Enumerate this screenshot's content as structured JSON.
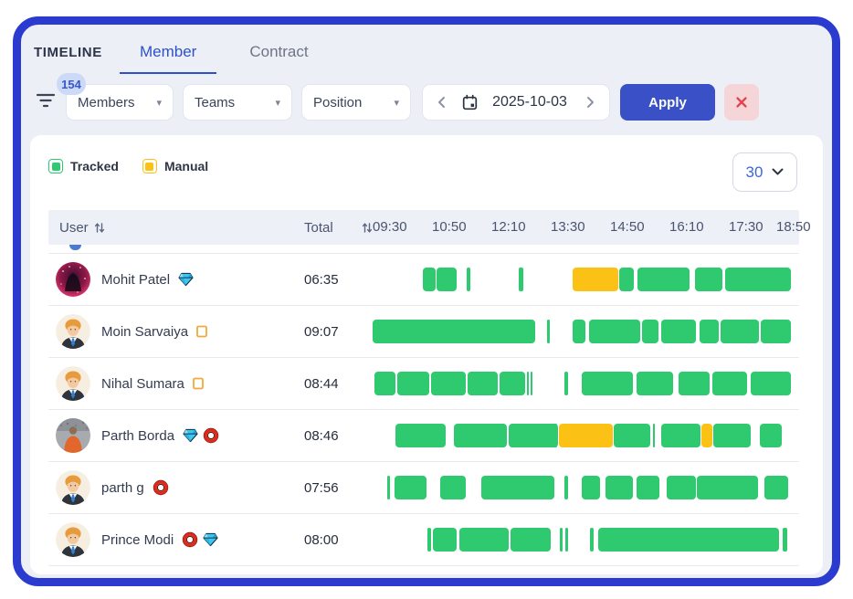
{
  "header": {
    "title": "TIMELINE",
    "tabs": [
      {
        "label": "Member",
        "active": true
      },
      {
        "label": "Contract",
        "active": false
      }
    ]
  },
  "filters": {
    "badge": "154",
    "dropdowns": [
      {
        "label": "Members"
      },
      {
        "label": "Teams"
      },
      {
        "label": "Position"
      }
    ],
    "date": {
      "value": "2025-10-03"
    },
    "apply_label": "Apply"
  },
  "legend": [
    {
      "label": "Tracked",
      "color": "#2fc96f"
    },
    {
      "label": "Manual",
      "color": "#fcc115"
    }
  ],
  "page_size": "30",
  "colors": {
    "green": "#2fc96f",
    "yellow": "#fcc115",
    "accent": "#2d4fc8",
    "frame_border": "#2b3bd0",
    "danger": "#e2444e"
  },
  "table": {
    "columns": {
      "user": "User",
      "total": "Total"
    },
    "times": [
      "09:30",
      "10:50",
      "12:10",
      "13:30",
      "14:50",
      "16:10",
      "17:30",
      "18:50"
    ],
    "rows": [
      {
        "name": "Mohit Patel",
        "badges": [
          "gem-icon"
        ],
        "avatar": "hooded",
        "total": "06:35",
        "segments": [
          [
            55,
            14
          ],
          [
            70,
            22
          ],
          [
            103,
            4
          ],
          [
            160,
            5
          ],
          [
            219,
            50,
            "y"
          ],
          [
            270,
            16
          ],
          [
            290,
            57
          ],
          [
            353,
            30
          ],
          [
            386,
            72
          ]
        ]
      },
      {
        "name": "Moin Sarvaiya",
        "badges": [
          "tofu-icon"
        ],
        "avatar": "suit",
        "total": "09:07",
        "segments": [
          [
            0,
            178
          ],
          [
            191,
            3
          ],
          [
            219,
            14
          ],
          [
            237,
            56
          ],
          [
            295,
            18
          ],
          [
            316,
            38
          ],
          [
            358,
            21
          ],
          [
            381,
            42
          ],
          [
            425,
            33
          ]
        ]
      },
      {
        "name": "Nihal Sumara",
        "badges": [
          "tofu-icon"
        ],
        "avatar": "suit",
        "total": "08:44",
        "segments": [
          [
            2,
            23
          ],
          [
            27,
            35
          ],
          [
            64,
            38
          ],
          [
            104,
            33
          ],
          [
            139,
            28
          ],
          [
            169,
            2
          ],
          [
            173,
            2
          ],
          [
            210,
            4
          ],
          [
            229,
            56
          ],
          [
            289,
            40
          ],
          [
            335,
            34
          ],
          [
            372,
            38
          ],
          [
            414,
            44
          ]
        ]
      },
      {
        "name": "Parth Borda",
        "badges": [
          "gem-icon",
          "ring-icon"
        ],
        "avatar": "crowd",
        "total": "08:46",
        "segments": [
          [
            25,
            55
          ],
          [
            89,
            58
          ],
          [
            149,
            54
          ],
          [
            199,
            3
          ],
          [
            204,
            59,
            "y"
          ],
          [
            264,
            40
          ],
          [
            307,
            2
          ],
          [
            316,
            43
          ],
          [
            360,
            12,
            "y"
          ],
          [
            373,
            41
          ],
          [
            424,
            24
          ]
        ]
      },
      {
        "name": "parth g",
        "badges": [
          "ring-icon"
        ],
        "avatar": "suit",
        "total": "07:56",
        "segments": [
          [
            16,
            3
          ],
          [
            24,
            35
          ],
          [
            74,
            28
          ],
          [
            119,
            80
          ],
          [
            210,
            4
          ],
          [
            229,
            20
          ],
          [
            255,
            30
          ],
          [
            289,
            25
          ],
          [
            322,
            32
          ],
          [
            355,
            67
          ],
          [
            429,
            26
          ]
        ]
      },
      {
        "name": "Prince Modi",
        "badges": [
          "ring-icon",
          "gem-icon"
        ],
        "avatar": "suit",
        "total": "08:00",
        "segments": [
          [
            60,
            4
          ],
          [
            66,
            26
          ],
          [
            95,
            54
          ],
          [
            151,
            44
          ],
          [
            205,
            3
          ],
          [
            211,
            3
          ],
          [
            238,
            4
          ],
          [
            247,
            198
          ],
          [
            449,
            5
          ]
        ]
      }
    ]
  }
}
